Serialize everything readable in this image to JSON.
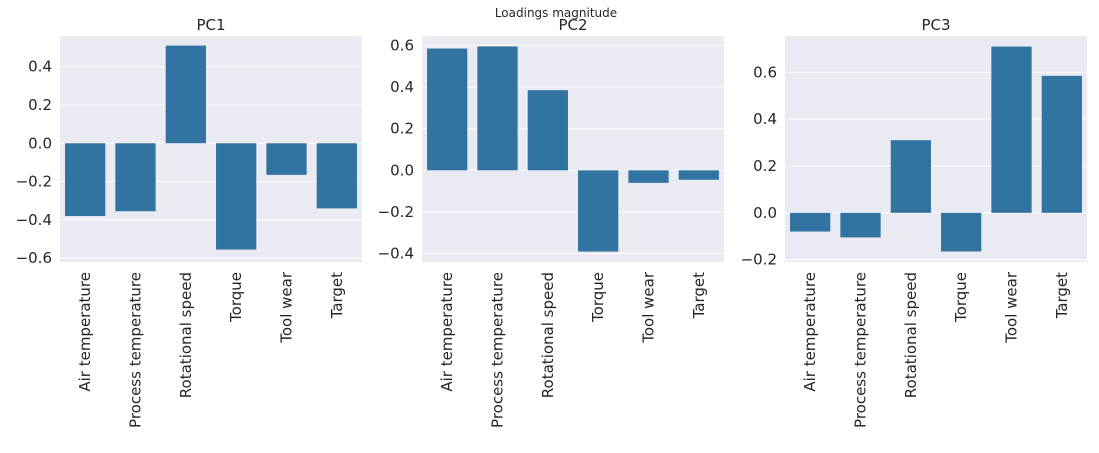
{
  "title": "Loadings magnitude",
  "colors": {
    "bar": "#3274a1",
    "plot_bg": "#eaeaf2",
    "grid": "#ffffff",
    "text": "#262626"
  },
  "chart_data": [
    {
      "type": "bar",
      "title": "PC1",
      "categories": [
        "Air temperature",
        "Process temperature",
        "Rotational speed",
        "Torque",
        "Tool wear",
        "Target"
      ],
      "values": [
        -0.38,
        -0.355,
        0.51,
        -0.555,
        -0.165,
        -0.34
      ],
      "ylim": [
        -0.62,
        0.56
      ],
      "yticks": [
        -0.6,
        -0.4,
        -0.2,
        0.0,
        0.2,
        0.4
      ],
      "ytick_labels": [
        "−0.6",
        "−0.4",
        "−0.2",
        "0.0",
        "0.2",
        "0.4"
      ],
      "grid": true
    },
    {
      "type": "bar",
      "title": "PC2",
      "categories": [
        "Air temperature",
        "Process temperature",
        "Rotational speed",
        "Torque",
        "Tool wear",
        "Target"
      ],
      "values": [
        0.585,
        0.595,
        0.385,
        -0.39,
        -0.06,
        -0.045
      ],
      "ylim": [
        -0.44,
        0.645
      ],
      "yticks": [
        -0.4,
        -0.2,
        0.0,
        0.2,
        0.4,
        0.6
      ],
      "ytick_labels": [
        "−0.4",
        "−0.2",
        "0.0",
        "0.2",
        "0.4",
        "0.6"
      ],
      "grid": true
    },
    {
      "type": "bar",
      "title": "PC3",
      "categories": [
        "Air temperature",
        "Process temperature",
        "Rotational speed",
        "Torque",
        "Tool wear",
        "Target"
      ],
      "values": [
        -0.08,
        -0.105,
        0.31,
        -0.165,
        0.71,
        0.585
      ],
      "ylim": [
        -0.21,
        0.755
      ],
      "yticks": [
        -0.2,
        0.0,
        0.2,
        0.4,
        0.6
      ],
      "ytick_labels": [
        "−0.2",
        "0.0",
        "0.2",
        "0.4",
        "0.6"
      ],
      "grid": true
    }
  ]
}
